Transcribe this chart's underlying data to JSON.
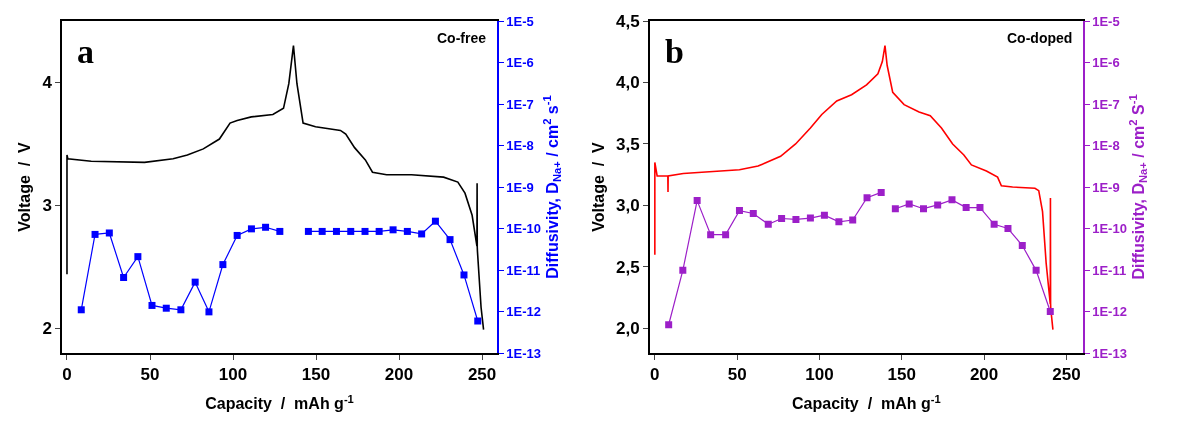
{
  "chart_data": [
    {
      "type": "line",
      "xlabel": "Capacity  /  mAh g$^{-1}$",
      "ylabel": "Voltage  /  V",
      "y2label": "Diffusivity, D$_{Na+}$ / cm$^{2}$ s$^{-1}$",
      "annotations": [
        "a",
        "Co-free"
      ],
      "xlim": [
        -3,
        259
      ],
      "xticks": [
        0,
        50,
        100,
        150,
        200,
        250
      ],
      "ylim": [
        1.8,
        4.5
      ],
      "yticks": [
        2,
        3,
        4
      ],
      "y2lim": [
        1e-13,
        1e-05
      ],
      "y2ticks": [
        {
          "value": 1e-13,
          "label": "1E-13"
        },
        {
          "value": 1e-12,
          "label": "1E-12"
        },
        {
          "value": 1e-11,
          "label": "1E-11"
        },
        {
          "value": 1e-10,
          "label": "1E-10"
        },
        {
          "value": 1e-09,
          "label": "1E-9"
        },
        {
          "value": 1e-08,
          "label": "1E-8"
        },
        {
          "value": 1e-07,
          "label": "1E-7"
        },
        {
          "value": 1e-06,
          "label": "1E-6"
        },
        {
          "value": 1e-05,
          "label": "1E-5"
        }
      ],
      "log": "y2",
      "line_style": "solid",
      "series": [
        {
          "color": "#000000",
          "marker": "none",
          "x": [
            0,
            0,
            0.5,
            14.6,
            46.7,
            63.9,
            72.5,
            82.1,
            91.8,
            98.2,
            102.5,
            111,
            124,
            130.4,
            133.6,
            136.4,
            138.5,
            142.2,
            149.7,
            164.7,
            167.9,
            173.2,
            179.7,
            184,
            192.5,
            207.5,
            226.8,
            235.4,
            239.7,
            244,
            246.9,
            247,
            247.1,
            247.2,
            249.4,
            250.9
          ],
          "values": [
            2.44,
            3.41,
            3.38,
            3.36,
            3.35,
            3.38,
            3.41,
            3.46,
            3.54,
            3.67,
            3.69,
            3.72,
            3.74,
            3.79,
            3.99,
            4.3,
            3.99,
            3.67,
            3.64,
            3.61,
            3.58,
            3.47,
            3.37,
            3.27,
            3.25,
            3.25,
            3.23,
            3.19,
            3.1,
            2.92,
            2.67,
            3.18,
            2.66,
            2.63,
            2.17,
            1.99
          ]
        },
        {
          "color": "#0000ff",
          "marker": "square",
          "axis": "y2",
          "x": [
            8.6,
            16.9,
            25.5,
            34.1,
            42.7,
            51.2,
            59.8,
            68.6,
            77.2,
            85.5,
            93.9,
            102.5,
            111.1,
            119.6,
            128.2,
            137,
            145.4,
            153.7,
            162.3,
            170.9,
            179.5,
            188.0,
            196.4,
            205.0,
            213.6,
            221.9,
            230.7,
            239.1,
            247.4
          ],
          "values": [
            1.1e-12,
            7.2e-11,
            7.8e-11,
            6.6e-12,
            2.1e-11,
            1.4e-12,
            1.2e-12,
            1.1e-12,
            5.1e-12,
            9.8e-13,
            1.35e-11,
            6.8e-11,
            9.8e-11,
            1.07e-10,
            8.5e-11,
            null,
            8.5e-11,
            8.5e-11,
            8.5e-11,
            8.5e-11,
            8.5e-11,
            8.5e-11,
            9.3e-11,
            8.5e-11,
            7.4e-11,
            1.5e-10,
            5.4e-11,
            7.6e-12,
            5.9e-13
          ]
        }
      ]
    },
    {
      "type": "line",
      "xlabel": "Capacity  /  mAh g$^{-1}$",
      "ylabel": "Voltage  /  V",
      "y2label": "Diffusivity, D$_{Na+}$ / cm$^{2}$ S$^{-1}$",
      "annotations": [
        "b",
        "Co-doped"
      ],
      "xlim": [
        -3,
        260
      ],
      "xticks": [
        0,
        50,
        100,
        150,
        200,
        250
      ],
      "ylim": [
        1.8,
        4.5
      ],
      "yticks": [
        {
          "value": 2,
          "label": "2,0"
        },
        {
          "value": 2.5,
          "label": "2,5"
        },
        {
          "value": 3,
          "label": "3,0"
        },
        {
          "value": 3.5,
          "label": "3,5"
        },
        {
          "value": 4,
          "label": "4,0"
        },
        {
          "value": 4.5,
          "label": "4,5"
        }
      ],
      "y2lim": [
        1e-13,
        1e-05
      ],
      "y2ticks": [
        {
          "value": 1e-13,
          "label": "1E-13"
        },
        {
          "value": 1e-12,
          "label": "1E-12"
        },
        {
          "value": 1e-11,
          "label": "1E-11"
        },
        {
          "value": 1e-10,
          "label": "1E-10"
        },
        {
          "value": 1e-09,
          "label": "1E-9"
        },
        {
          "value": 1e-08,
          "label": "1E-8"
        },
        {
          "value": 1e-07,
          "label": "1E-7"
        },
        {
          "value": 1e-06,
          "label": "1E-6"
        },
        {
          "value": 1e-05,
          "label": "1E-5"
        }
      ],
      "log": "y2",
      "line_style": "solid",
      "series": [
        {
          "color": "#ff0000",
          "marker": "none",
          "x": [
            0,
            0,
            1.4,
            7.9,
            8,
            8.1,
            17.3,
            28.6,
            51.4,
            62.7,
            76.4,
            85.5,
            94.5,
            101.4,
            110.5,
            119.5,
            128.6,
            135.5,
            138.2,
            139.8,
            141.1,
            144.5,
            151.4,
            160.5,
            167.3,
            174.1,
            180.9,
            187.7,
            192.3,
            201.4,
            208.2,
            210.5,
            217.3,
            230.9,
            233.2,
            235.5,
            237.7,
            240.2,
            240.3,
            240.4,
            240.5,
            241.8
          ],
          "values": [
            2.6,
            3.35,
            3.24,
            3.24,
            3.11,
            3.24,
            3.26,
            3.27,
            3.29,
            3.32,
            3.4,
            3.5,
            3.63,
            3.74,
            3.85,
            3.9,
            3.98,
            4.07,
            4.17,
            4.3,
            4.14,
            3.92,
            3.82,
            3.76,
            3.73,
            3.63,
            3.5,
            3.41,
            3.33,
            3.28,
            3.23,
            3.16,
            3.15,
            3.14,
            3.12,
            2.95,
            2.53,
            2.2,
            3.06,
            2.2,
            2.16,
            1.99
          ]
        },
        {
          "color": "#9c1fc8",
          "marker": "square",
          "axis": "y2",
          "x": [
            8.4,
            17.0,
            25.7,
            33.9,
            43.0,
            51.4,
            59.8,
            68.9,
            77.0,
            85.7,
            94.5,
            103.0,
            111.8,
            120.2,
            128.9,
            137.5,
            142,
            146.1,
            154.5,
            163.2,
            171.8,
            180.5,
            189.1,
            197.5,
            206.1,
            214.5,
            223.2,
            231.6,
            240.2
          ],
          "values": [
            4.8e-13,
            9.8e-12,
            4.7e-10,
            7.1e-11,
            7.1e-11,
            2.7e-10,
            2.3e-10,
            1.26e-10,
            1.74e-10,
            1.65e-10,
            1.78e-10,
            2.1e-10,
            1.45e-10,
            1.6e-10,
            5.5e-10,
            7.4e-10,
            null,
            3e-10,
            3.9e-10,
            3e-10,
            3.7e-10,
            4.9e-10,
            3.2e-10,
            3.2e-10,
            1.26e-10,
            1e-10,
            3.9e-11,
            9.8e-12,
            1e-12
          ]
        }
      ]
    }
  ]
}
